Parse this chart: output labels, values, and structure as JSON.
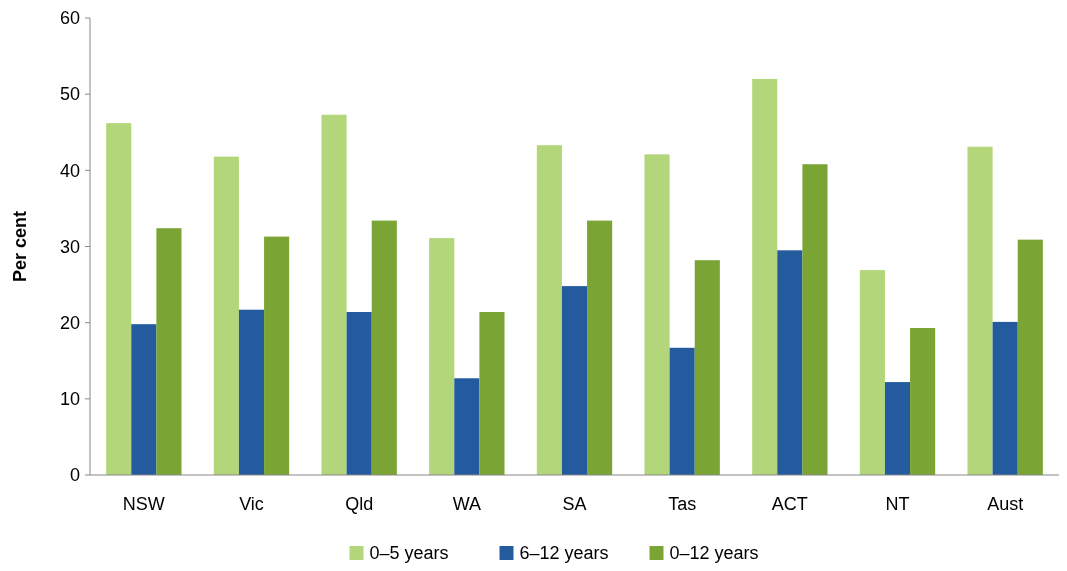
{
  "chart_data": {
    "type": "bar",
    "ylabel": "Per cent",
    "categories": [
      "NSW",
      "Vic",
      "Qld",
      "WA",
      "SA",
      "Tas",
      "ACT",
      "NT",
      "Aust"
    ],
    "series": [
      {
        "name": "0–5 years",
        "color": "#b3d67a",
        "values": [
          46.2,
          41.8,
          47.3,
          31.1,
          43.3,
          42.1,
          52.0,
          26.9,
          43.1
        ]
      },
      {
        "name": "6–12 years",
        "color": "#245b9f",
        "values": [
          19.8,
          21.7,
          21.4,
          12.7,
          24.8,
          16.7,
          29.5,
          12.2,
          20.1
        ]
      },
      {
        "name": "0–12 years",
        "color": "#7aa535",
        "values": [
          32.4,
          31.3,
          33.4,
          21.4,
          33.4,
          28.2,
          40.8,
          19.3,
          30.9
        ]
      }
    ],
    "ylim": [
      0,
      60
    ],
    "yticks": [
      0,
      10,
      20,
      30,
      40,
      50,
      60
    ],
    "grid": false,
    "legend": "bottom"
  }
}
